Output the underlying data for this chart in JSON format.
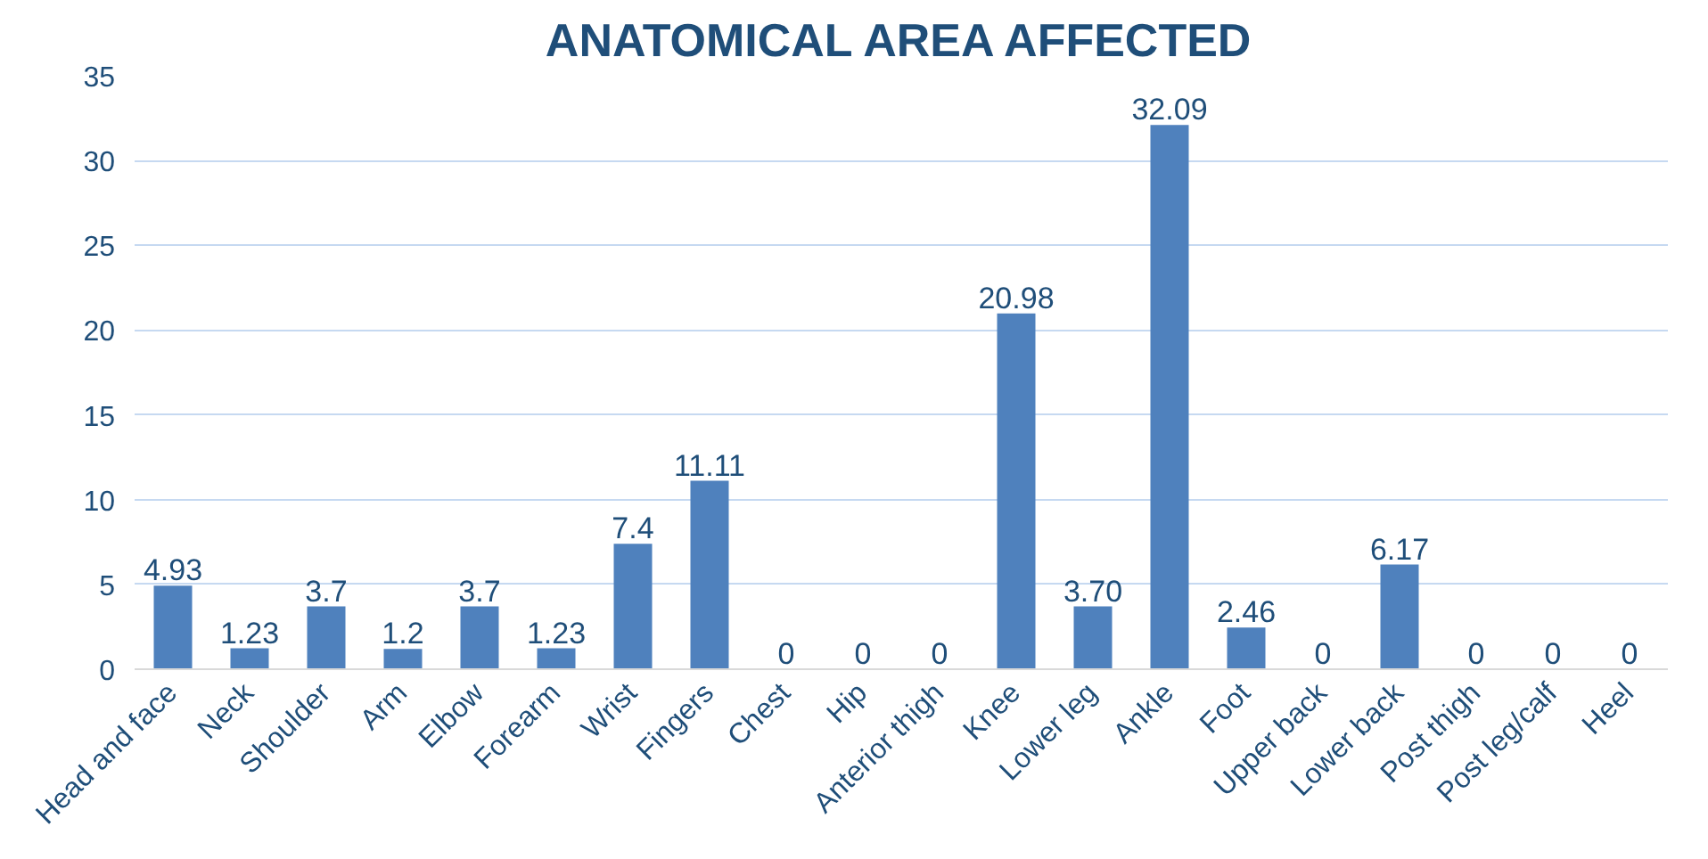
{
  "chart_data": {
    "type": "bar",
    "title": "ANATOMICAL AREA AFFECTED",
    "categories": [
      "Head and face",
      "Neck",
      "Shoulder",
      "Arm",
      "Elbow",
      "Forearm",
      "Wrist",
      "Fingers",
      "Chest",
      "Hip",
      "Anterior thigh",
      "Knee",
      "Lower leg",
      "Ankle",
      "Foot",
      "Upper back",
      "Lower back",
      "Post thigh",
      "Post leg/calf",
      "Heel"
    ],
    "values": [
      4.93,
      1.23,
      3.7,
      1.2,
      3.7,
      1.23,
      7.4,
      11.11,
      0,
      0,
      0,
      20.98,
      3.7,
      32.09,
      2.46,
      0,
      6.17,
      0,
      0,
      0
    ],
    "value_labels": [
      "4.93",
      "1.23",
      "3.7",
      "1.2",
      "3.7",
      "1.23",
      "7.4",
      "11.11",
      "0",
      "0",
      "0",
      "20.98",
      "3.70",
      "32.09",
      "2.46",
      "0",
      "6.17",
      "0",
      "0",
      "0"
    ],
    "color": "#4f81bd",
    "ylim": [
      0,
      35
    ],
    "yticks": [
      0,
      5,
      10,
      15,
      20,
      25,
      30,
      35
    ],
    "grid": "y"
  }
}
